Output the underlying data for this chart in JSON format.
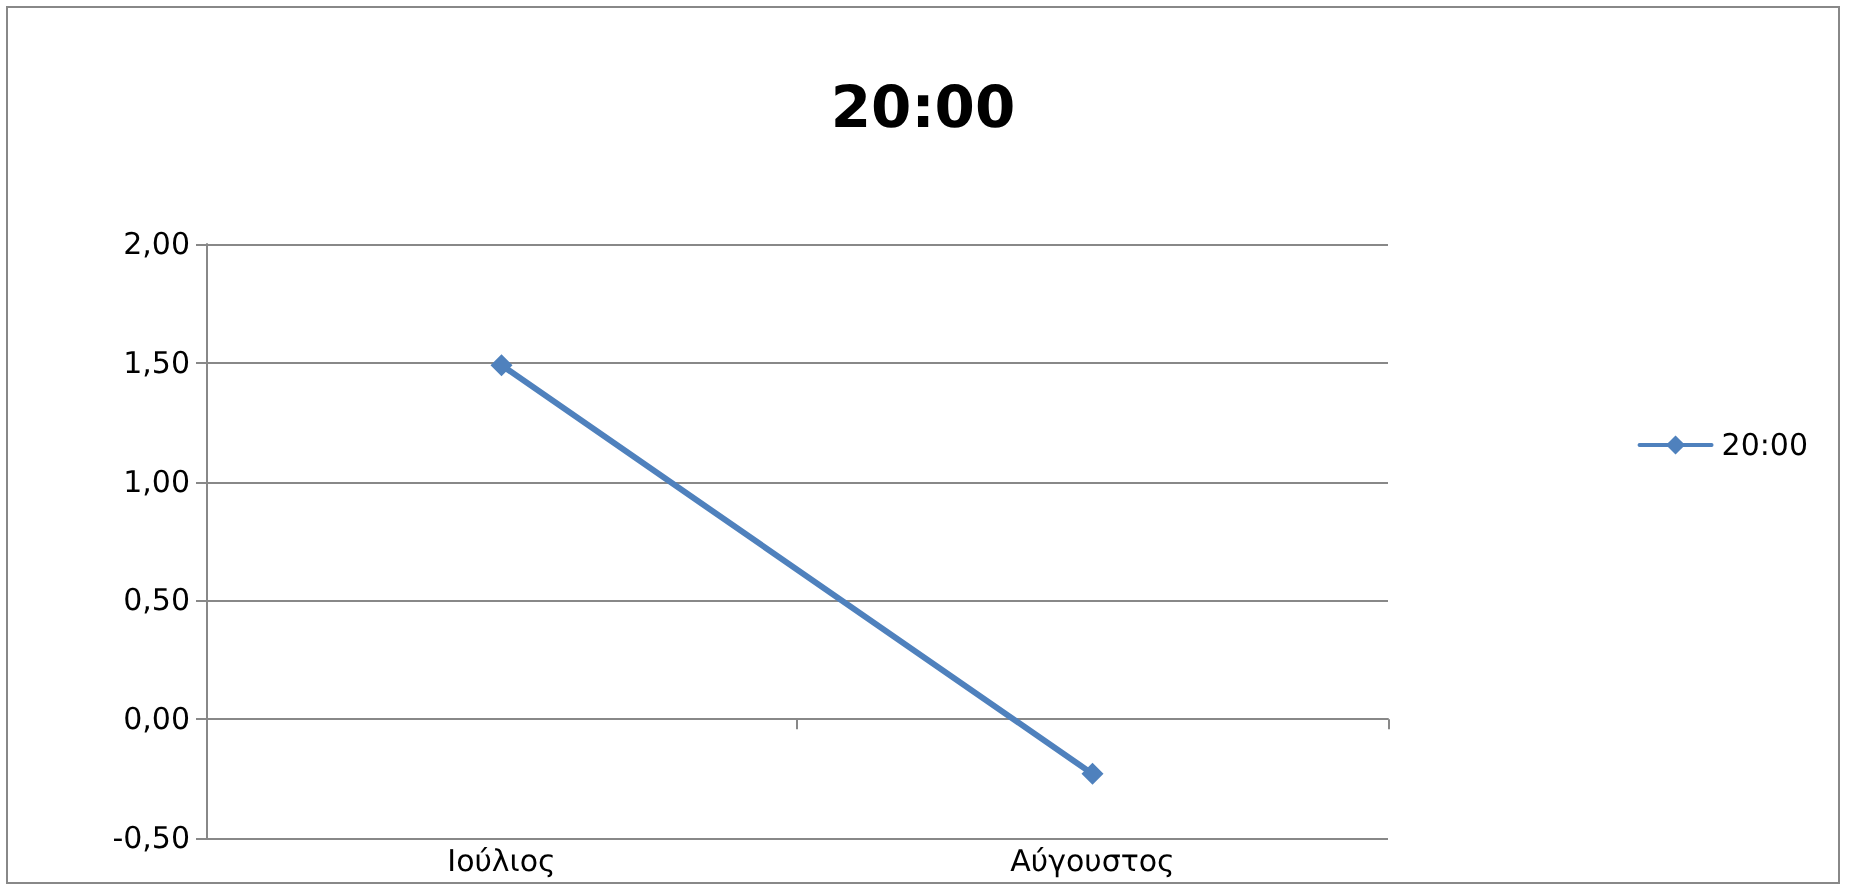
{
  "chart_data": {
    "type": "line",
    "title": "20:00",
    "categories": [
      "Ιούλιος",
      "Αύγουστος"
    ],
    "series": [
      {
        "name": "20:00",
        "color": "#4f81bd",
        "values": [
          1.49,
          -0.23
        ]
      }
    ],
    "ylim": [
      -0.5,
      2
    ],
    "yticks": [
      {
        "value": -0.5,
        "label": "-0,50"
      },
      {
        "value": 0,
        "label": "0,00"
      },
      {
        "value": 0.5,
        "label": "0,50"
      },
      {
        "value": 1,
        "label": "1,00"
      },
      {
        "value": 1.5,
        "label": "1,50"
      },
      {
        "value": 2,
        "label": "2,00"
      }
    ],
    "grid": "y",
    "legend": "right",
    "marker": "diamond",
    "line_style": "solid"
  }
}
